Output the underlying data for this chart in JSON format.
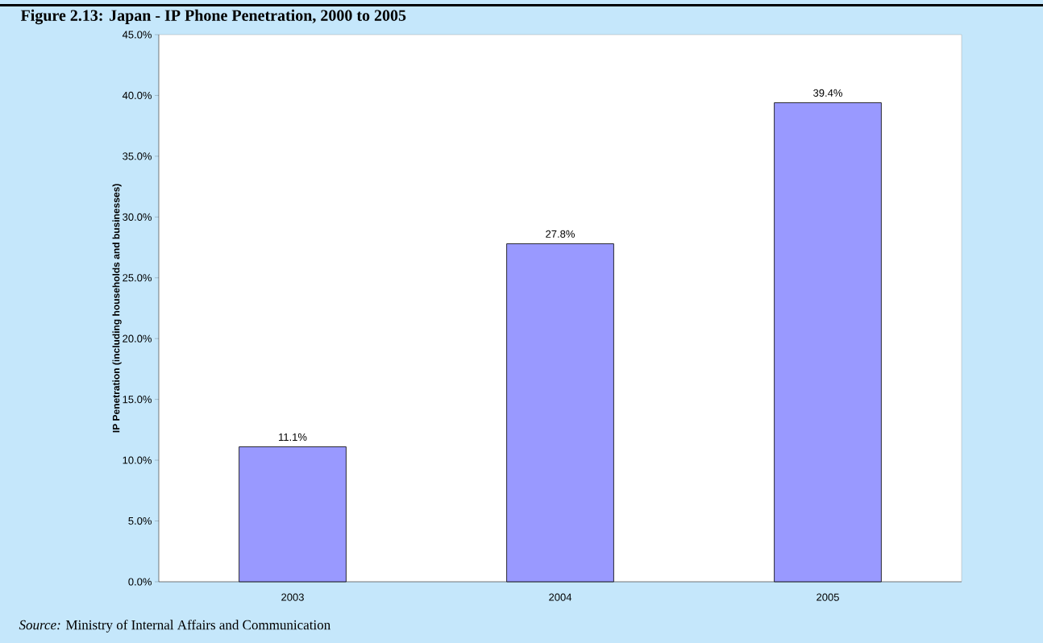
{
  "chart_data": {
    "type": "bar",
    "title": "Figure 2.13: Japan - IP Phone Penetration, 2000 to 2005",
    "ylabel": "IP Penetration (including households and businesses)",
    "categories": [
      "2003",
      "2004",
      "2005"
    ],
    "values": [
      11.1,
      27.8,
      39.4
    ],
    "value_labels": [
      "11.1%",
      "27.8%",
      "39.4%"
    ],
    "color": "#9999ff",
    "ylim": [
      0,
      45
    ],
    "yticks": [
      {
        "value": 0,
        "label": "0.0%"
      },
      {
        "value": 5,
        "label": "5.0%"
      },
      {
        "value": 10,
        "label": "10.0%"
      },
      {
        "value": 15,
        "label": "15.0%"
      },
      {
        "value": 20,
        "label": "20.0%"
      },
      {
        "value": 25,
        "label": "25.0%"
      },
      {
        "value": 30,
        "label": "30.0%"
      },
      {
        "value": 35,
        "label": "35.0%"
      },
      {
        "value": 40,
        "label": "40.0%"
      },
      {
        "value": 45,
        "label": "45.0%"
      }
    ],
    "grid": false,
    "annotations": [
      "*Source:* Ministry of Internal Affairs and Communication"
    ]
  }
}
